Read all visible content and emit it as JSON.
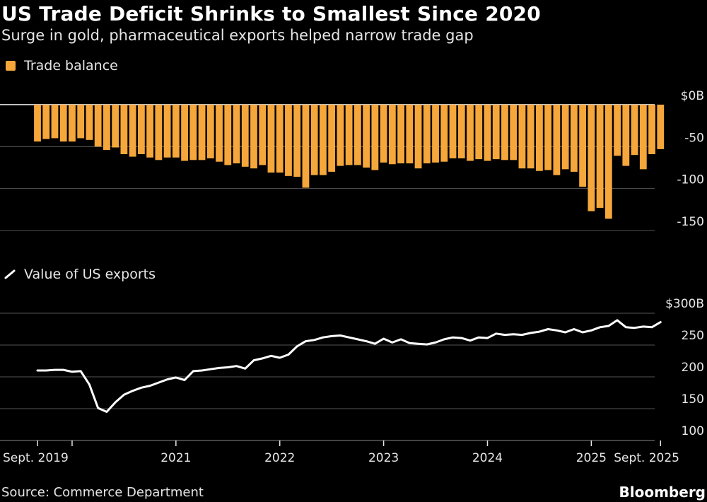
{
  "header": {
    "title": "US Trade Deficit Shrinks to Smallest Since 2020",
    "subtitle": "Surge in gold, pharmaceutical exports helped narrow trade gap"
  },
  "footer": {
    "source": "Source: Commerce Department",
    "brand": "Bloomberg"
  },
  "colors": {
    "background": "#000000",
    "bar": "#f5a73b",
    "line": "#ffffff",
    "grid": "#555555"
  },
  "chart_data": [
    {
      "type": "bar",
      "legend": "Trade balance",
      "series": [
        {
          "name": "Trade balance",
          "values": [
            -44,
            -41,
            -40,
            -44,
            -44,
            -40,
            -42,
            -50,
            -54,
            -51,
            -59,
            -62,
            -59,
            -63,
            -66,
            -63,
            -63,
            -67,
            -66,
            -66,
            -64,
            -68,
            -72,
            -70,
            -74,
            -76,
            -72,
            -81,
            -81,
            -85,
            -86,
            -99,
            -84,
            -84,
            -80,
            -73,
            -72,
            -72,
            -75,
            -78,
            -69,
            -71,
            -70,
            -70,
            -76,
            -70,
            -69,
            -68,
            -64,
            -64,
            -67,
            -65,
            -67,
            -65,
            -66,
            -66,
            -76,
            -76,
            -79,
            -78,
            -84,
            -77,
            -80,
            -98,
            -127,
            -123,
            -136,
            -61,
            -73,
            -60,
            -77,
            -59,
            -53
          ]
        }
      ],
      "x_start": "Sept. 2019",
      "x_end": "Sept. 2025",
      "y_ticks": [
        "$0B",
        "-50",
        "-100",
        "-150"
      ],
      "ylim": [
        -150,
        0
      ],
      "grid": true
    },
    {
      "type": "line",
      "legend": "Value of US exports",
      "series": [
        {
          "name": "Value of US exports",
          "values": [
            210,
            210,
            211,
            211,
            208,
            209,
            188,
            151,
            145,
            160,
            172,
            178,
            183,
            186,
            191,
            196,
            199,
            195,
            209,
            210,
            212,
            214,
            215,
            217,
            213,
            226,
            229,
            233,
            230,
            235,
            248,
            256,
            258,
            262,
            264,
            265,
            262,
            259,
            256,
            252,
            260,
            254,
            259,
            253,
            252,
            251,
            254,
            259,
            262,
            261,
            257,
            262,
            261,
            268,
            266,
            267,
            266,
            269,
            271,
            275,
            273,
            270,
            275,
            270,
            273,
            278,
            280,
            289,
            278,
            277,
            279,
            278,
            286
          ]
        }
      ],
      "y_ticks": [
        "$300B",
        "250",
        "200",
        "150",
        "100"
      ],
      "ylim": [
        100,
        300
      ],
      "grid": true
    }
  ],
  "x_axis": {
    "labels": [
      "Sept. 2019",
      "2021",
      "2022",
      "2023",
      "2024",
      "2025",
      "Sept. 2025"
    ],
    "label_months": [
      0,
      16,
      28,
      40,
      52,
      64,
      72
    ]
  }
}
